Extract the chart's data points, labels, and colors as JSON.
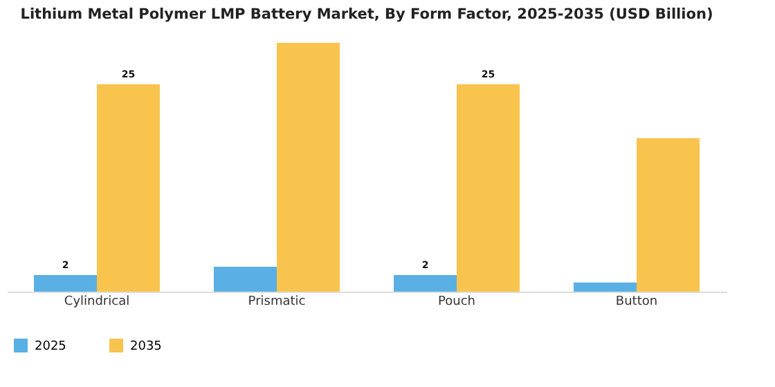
{
  "chart_data": {
    "type": "bar",
    "title": "Lithium Metal Polymer LMP Battery Market, By Form Factor, 2025-2035 (USD Billion)",
    "categories": [
      "Cylindrical",
      "Prismatic",
      "Pouch",
      "Button"
    ],
    "series": [
      {
        "name": "2025",
        "color": "#5aafe4",
        "values": [
          2,
          3.0,
          2,
          1.1
        ],
        "value_labels": [
          "2",
          null,
          "2",
          null
        ]
      },
      {
        "name": "2035",
        "color": "#f8c44e",
        "values": [
          25,
          30.0,
          25,
          18.5
        ],
        "value_labels": [
          "25",
          null,
          "25",
          null
        ]
      }
    ],
    "legend": "bottom",
    "grid": false
  }
}
